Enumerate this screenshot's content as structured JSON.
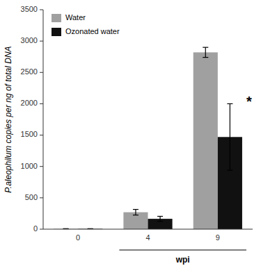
{
  "chart_data": {
    "type": "bar",
    "categories": [
      "0",
      "4",
      "9"
    ],
    "series": [
      {
        "name": "Water",
        "color": "#a0a0a0",
        "values": [
          5,
          270,
          2820
        ],
        "errors": [
          3,
          45,
          80
        ]
      },
      {
        "name": "Ozonated water",
        "color": "#111111",
        "values": [
          5,
          165,
          1470
        ],
        "errors": [
          3,
          40,
          530
        ]
      }
    ],
    "ylim": [
      0,
      3500
    ],
    "yticks": [
      0,
      500,
      1000,
      1500,
      2000,
      2500,
      3000,
      3500
    ],
    "ylabel": "P.aleophilum copies per ng of total DNA",
    "xlabel": "wpi",
    "legend": "upper left",
    "grid": false,
    "annotations": [
      {
        "text": "*",
        "category": "9",
        "series": "Ozonated water"
      }
    ]
  }
}
